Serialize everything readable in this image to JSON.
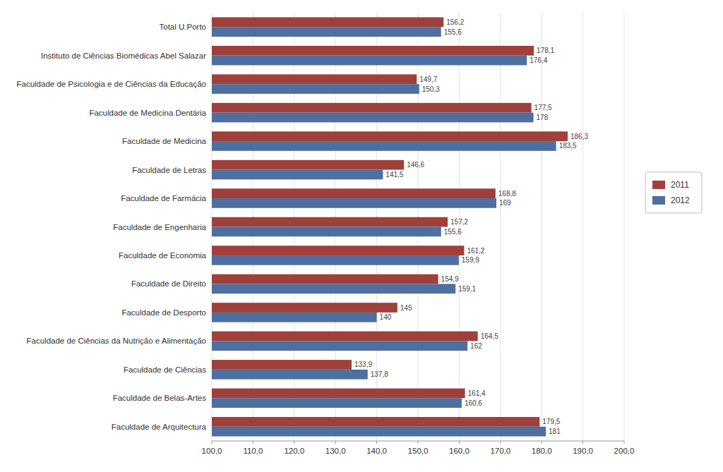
{
  "chart_data": {
    "type": "bar",
    "orientation": "horizontal",
    "categories": [
      "Faculdade de Arquitectura",
      "Faculdade de Belas-Artes",
      "Faculdade de Ciências",
      "Faculdade de Ciências da Nutrição e Alimentação",
      "Faculdade de Desporto",
      "Faculdade de Direito",
      "Faculdade de Economia",
      "Faculdade de Engenharia",
      "Faculdade de Farmácia",
      "Faculdade de Letras",
      "Faculdade de Medicina",
      "Faculdade de Medicina Dentária",
      "Faculdade de Psicologia e de Ciências da Educação",
      "Instituto de Ciências Biomédicas Abel Salazar",
      "Total U.Porto"
    ],
    "series": [
      {
        "name": "2011",
        "color": "#A0403A",
        "values": [
          179.5,
          161.4,
          133.9,
          164.5,
          145.0,
          154.9,
          161.2,
          157.2,
          168.8,
          146.6,
          186.3,
          177.5,
          149.7,
          178.1,
          156.2
        ],
        "value_labels": [
          "179,5",
          "161,4",
          "133,9",
          "164,5",
          "145",
          "154,9",
          "161,2",
          "157,2",
          "168,8",
          "146,6",
          "186,3",
          "177,5",
          "149,7",
          "178,1",
          "156,2"
        ]
      },
      {
        "name": "2012",
        "color": "#4F6FA0",
        "values": [
          181.0,
          160.6,
          137.8,
          162.0,
          140.0,
          159.1,
          159.9,
          155.6,
          169.0,
          141.5,
          183.5,
          178.0,
          150.3,
          176.4,
          155.6
        ],
        "value_labels": [
          "181",
          "160,6",
          "137,8",
          "162",
          "140",
          "159,1",
          "159,9",
          "155,6",
          "169",
          "141,5",
          "183,5",
          "178",
          "150,3",
          "176,4",
          "155,6"
        ]
      }
    ],
    "xlim": [
      100,
      200
    ],
    "xticks": [
      {
        "value": 100.0,
        "label": "100,0"
      },
      {
        "value": 110.0,
        "label": "110,0"
      },
      {
        "value": 120.0,
        "label": "120,0"
      },
      {
        "value": 130.0,
        "label": "130,0"
      },
      {
        "value": 140.0,
        "label": "140,0"
      },
      {
        "value": 150.0,
        "label": "150,0"
      },
      {
        "value": 160.0,
        "label": "160,0"
      },
      {
        "value": 170.0,
        "label": "170,0"
      },
      {
        "value": 180.0,
        "label": "180,0"
      },
      {
        "value": 190.0,
        "label": "190,0"
      },
      {
        "value": 200.0,
        "label": "200,0"
      }
    ],
    "grid": true,
    "data_labels": true,
    "legend": "right"
  }
}
